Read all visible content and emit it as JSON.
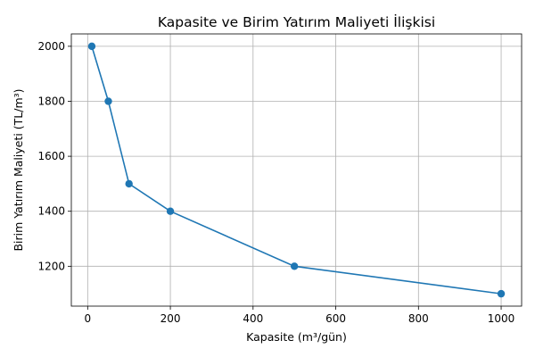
{
  "chart_data": {
    "type": "line",
    "title": "Kapasite ve Birim Yatırım Maliyeti İlişkisi",
    "xlabel": "Kapasite (m³/gün)",
    "ylabel": "Birim Yatırım Maliyeti (TL/m³)",
    "x": [
      10,
      50,
      100,
      200,
      500,
      1000
    ],
    "series": [
      {
        "values": [
          2000,
          1800,
          1500,
          1400,
          1200,
          1100
        ]
      }
    ],
    "xlim": [
      -39.5,
      1049.5
    ],
    "ylim": [
      1055,
      2045
    ],
    "xticks": [
      0,
      200,
      400,
      600,
      800,
      1000
    ],
    "yticks": [
      1200,
      1400,
      1600,
      1800,
      2000
    ],
    "grid": true,
    "marker": "circle",
    "color": "#1f77b4"
  }
}
